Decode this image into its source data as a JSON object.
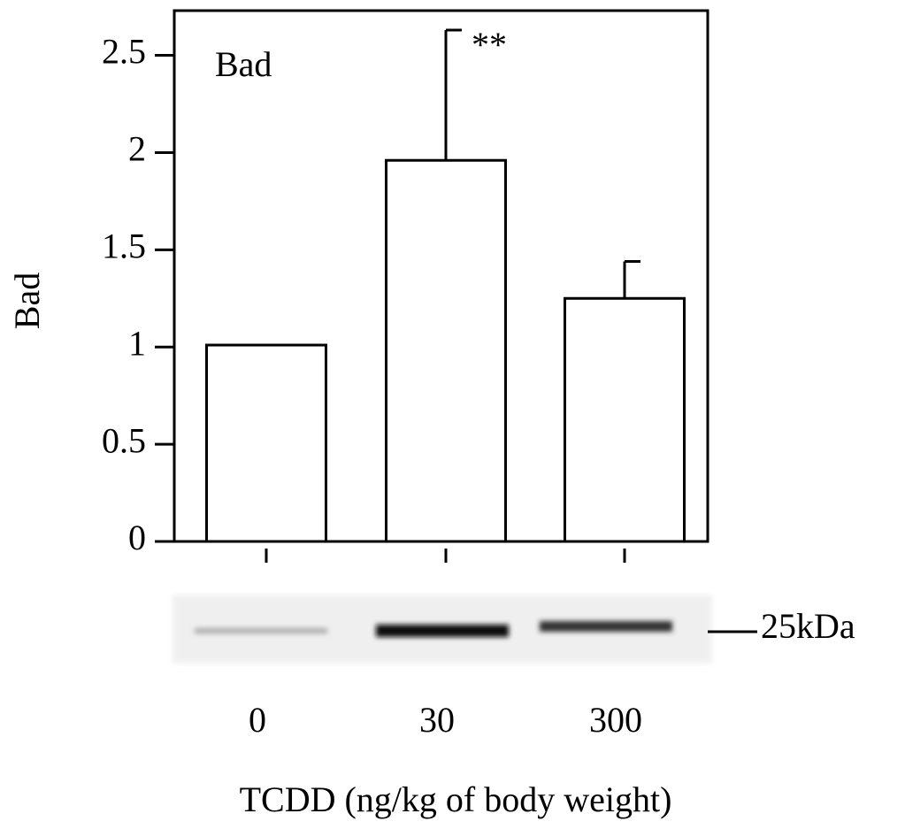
{
  "chart_data": {
    "type": "bar",
    "title": "Bad",
    "y_label": "Bad",
    "x_label": "TCDD (ng/kg of body weight)",
    "categories": [
      "0",
      "30",
      "300"
    ],
    "values": [
      1.01,
      1.96,
      1.25
    ],
    "errors": [
      null,
      0.67,
      0.19
    ],
    "color": "#ffffff",
    "annotation": "**",
    "marker_label": "25kDa",
    "ylim": [
      0,
      2.73
    ],
    "yticks": [
      0,
      0.5,
      1,
      1.5,
      2,
      2.5
    ]
  }
}
